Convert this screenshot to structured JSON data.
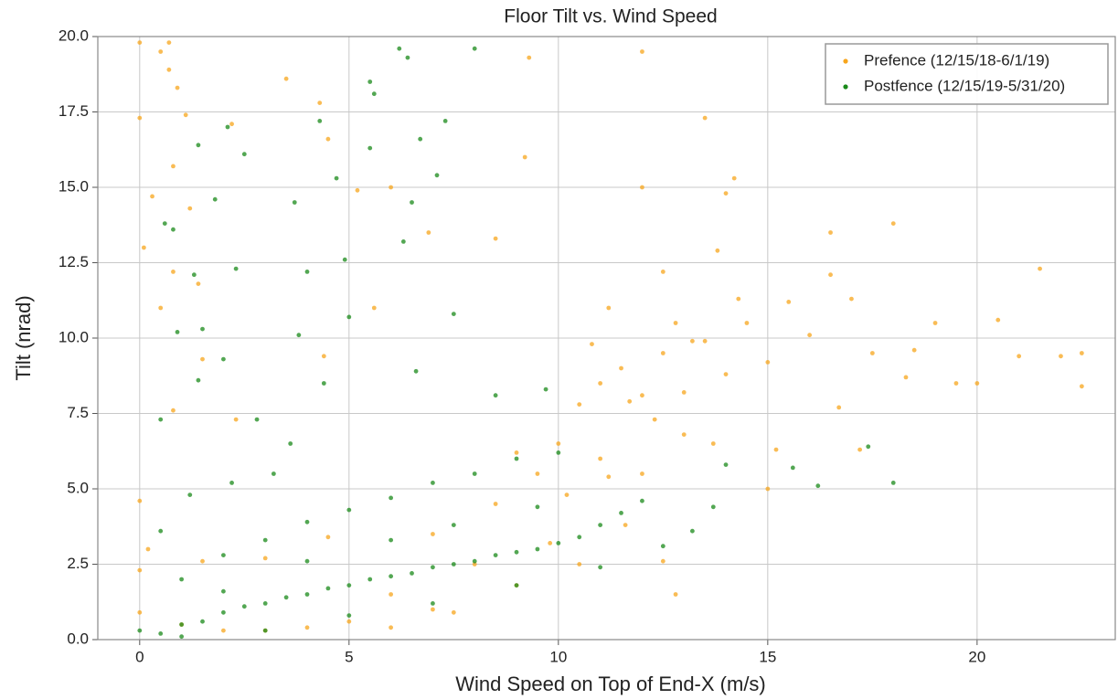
{
  "chart_data": {
    "type": "scatter",
    "title": "Floor Tilt vs. Wind Speed",
    "x_label": "Wind Speed on Top of End-X (m/s)",
    "y_label": "Tilt (nrad)",
    "xlim": [
      -1,
      23.3
    ],
    "ylim": [
      0,
      20
    ],
    "xticks": [
      0,
      5,
      10,
      15,
      20
    ],
    "yticks": [
      {
        "value": 0,
        "label": "0.0"
      },
      {
        "value": 2.5,
        "label": "2.5"
      },
      {
        "value": 5,
        "label": "5.0"
      },
      {
        "value": 7.5,
        "label": "7.5"
      },
      {
        "value": 10,
        "label": "10.0"
      },
      {
        "value": 12.5,
        "label": "12.5"
      },
      {
        "value": 15,
        "label": "15.0"
      },
      {
        "value": 17.5,
        "label": "17.5"
      },
      {
        "value": 20,
        "label": "20.0"
      }
    ],
    "grid": true,
    "legend": "upper right",
    "series": [
      {
        "name": "Prefence (12/15/18-6/1/19)",
        "color": "#f7a51c",
        "x": [
          0,
          0.7,
          0.5,
          0.7,
          0.9,
          1.1,
          0,
          2.2,
          3.5,
          4.3,
          4.5,
          9.3,
          12,
          13.5,
          9.2,
          6,
          5.2,
          0.8,
          0.3,
          1.2,
          0.1,
          0.8,
          1.4,
          0.5,
          1.5,
          4.4,
          2.3,
          0.8,
          5.6,
          6.9,
          8.5,
          10.5,
          11,
          11.5,
          12,
          12.5,
          13,
          13.5,
          14,
          14.5,
          15,
          15.5,
          16,
          16.5,
          17,
          17.5,
          18,
          18.5,
          19,
          19.5,
          20,
          20.5,
          21,
          21.5,
          22,
          22.5,
          22.5,
          14.2,
          12,
          14,
          16.5,
          11.2,
          12.5,
          13.8,
          10,
          11,
          12,
          13,
          9.5,
          9,
          8.5,
          10.2,
          12.5,
          12.8,
          9.8,
          11.6,
          15,
          7,
          8,
          6,
          7,
          5,
          4,
          3,
          2,
          1,
          0,
          0,
          0,
          0.2,
          1.5,
          3,
          4.5,
          6,
          7.5,
          9,
          10.5,
          11.2,
          13.2,
          14.3,
          15.2,
          16.7,
          17.2,
          18.3,
          12.3,
          11.7,
          13.7,
          10.8,
          12.8
        ],
        "values": [
          19.8,
          19.8,
          19.5,
          18.9,
          18.3,
          17.4,
          17.3,
          17.1,
          18.6,
          17.8,
          16.6,
          19.3,
          19.5,
          17.3,
          16,
          15,
          14.9,
          15.7,
          14.7,
          14.3,
          13,
          12.2,
          11.8,
          11,
          9.3,
          9.4,
          7.3,
          7.6,
          11,
          13.5,
          13.3,
          7.8,
          8.5,
          9,
          8.1,
          9.5,
          8.2,
          9.9,
          8.8,
          10.5,
          9.2,
          11.2,
          10.1,
          12.1,
          11.3,
          9.5,
          13.8,
          9.6,
          10.5,
          8.5,
          8.5,
          10.6,
          9.4,
          12.3,
          9.4,
          9.5,
          8.4,
          15.3,
          15,
          14.8,
          13.5,
          11,
          12.2,
          12.9,
          6.5,
          6,
          5.5,
          6.8,
          5.5,
          6.2,
          4.5,
          4.8,
          2.6,
          1.5,
          3.2,
          3.8,
          5,
          3.5,
          2.5,
          1.5,
          1.0,
          0.6,
          0.4,
          0.3,
          0.3,
          0.5,
          0.9,
          2.3,
          4.6,
          3,
          2.6,
          2.7,
          3.4,
          0.4,
          0.9,
          1.8,
          2.5,
          5.4,
          9.9,
          11.3,
          6.3,
          7.7,
          6.3,
          8.7,
          7.3,
          7.9,
          6.5,
          9.8,
          10.5
        ]
      },
      {
        "name": "Postfence (12/15/19-5/31/20)",
        "color": "#1a8a1a",
        "x": [
          6.2,
          8,
          6.4,
          5.5,
          5.6,
          4.3,
          7.3,
          2.1,
          1.4,
          6.7,
          5.5,
          2.5,
          7.1,
          4.7,
          1.8,
          3.7,
          0.6,
          0.8,
          6.5,
          6.3,
          4.9,
          4,
          2.3,
          1.3,
          3.8,
          5,
          7.5,
          1.5,
          0.9,
          2,
          4.4,
          6.6,
          1.4,
          0.5,
          17.4,
          18,
          16.2,
          15.6,
          14,
          13.7,
          0,
          0.5,
          1,
          1.5,
          2,
          2.5,
          3,
          3.5,
          4,
          4.5,
          5,
          5.5,
          6,
          6.5,
          7,
          7.5,
          8,
          8.5,
          9,
          9.5,
          10,
          10.5,
          11,
          11.5,
          12,
          1,
          2,
          3,
          4,
          5,
          6,
          7,
          8,
          9,
          10,
          0.5,
          1.2,
          2.2,
          3.2,
          3.6,
          2.8,
          1,
          3,
          5,
          7,
          9,
          11,
          12.5,
          13.2,
          8.5,
          9.7,
          6,
          4,
          2,
          7.5,
          9.5
        ],
        "values": [
          19.6,
          19.6,
          19.3,
          18.5,
          18.1,
          17.2,
          17.2,
          17,
          16.4,
          16.6,
          16.3,
          16.1,
          15.4,
          15.3,
          14.6,
          14.5,
          13.8,
          13.6,
          14.5,
          13.2,
          12.6,
          12.2,
          12.3,
          12.1,
          10.1,
          10.7,
          10.8,
          10.3,
          10.2,
          9.3,
          8.5,
          8.9,
          8.6,
          7.3,
          6.4,
          5.2,
          5.1,
          5.7,
          5.8,
          4.4,
          0.3,
          0.2,
          0.5,
          0.6,
          0.9,
          1.1,
          1.2,
          1.4,
          1.5,
          1.7,
          1.8,
          2,
          2.1,
          2.2,
          2.4,
          2.5,
          2.6,
          2.8,
          2.9,
          3,
          3.2,
          3.4,
          3.8,
          4.2,
          4.6,
          2,
          2.8,
          3.3,
          3.9,
          4.3,
          4.7,
          5.2,
          5.5,
          6,
          6.2,
          3.6,
          4.8,
          5.2,
          5.5,
          6.5,
          7.3,
          0.1,
          0.3,
          0.8,
          1.2,
          1.8,
          2.4,
          3.1,
          3.6,
          8.1,
          8.3,
          3.3,
          2.6,
          1.6,
          3.8,
          4.4
        ]
      }
    ]
  }
}
